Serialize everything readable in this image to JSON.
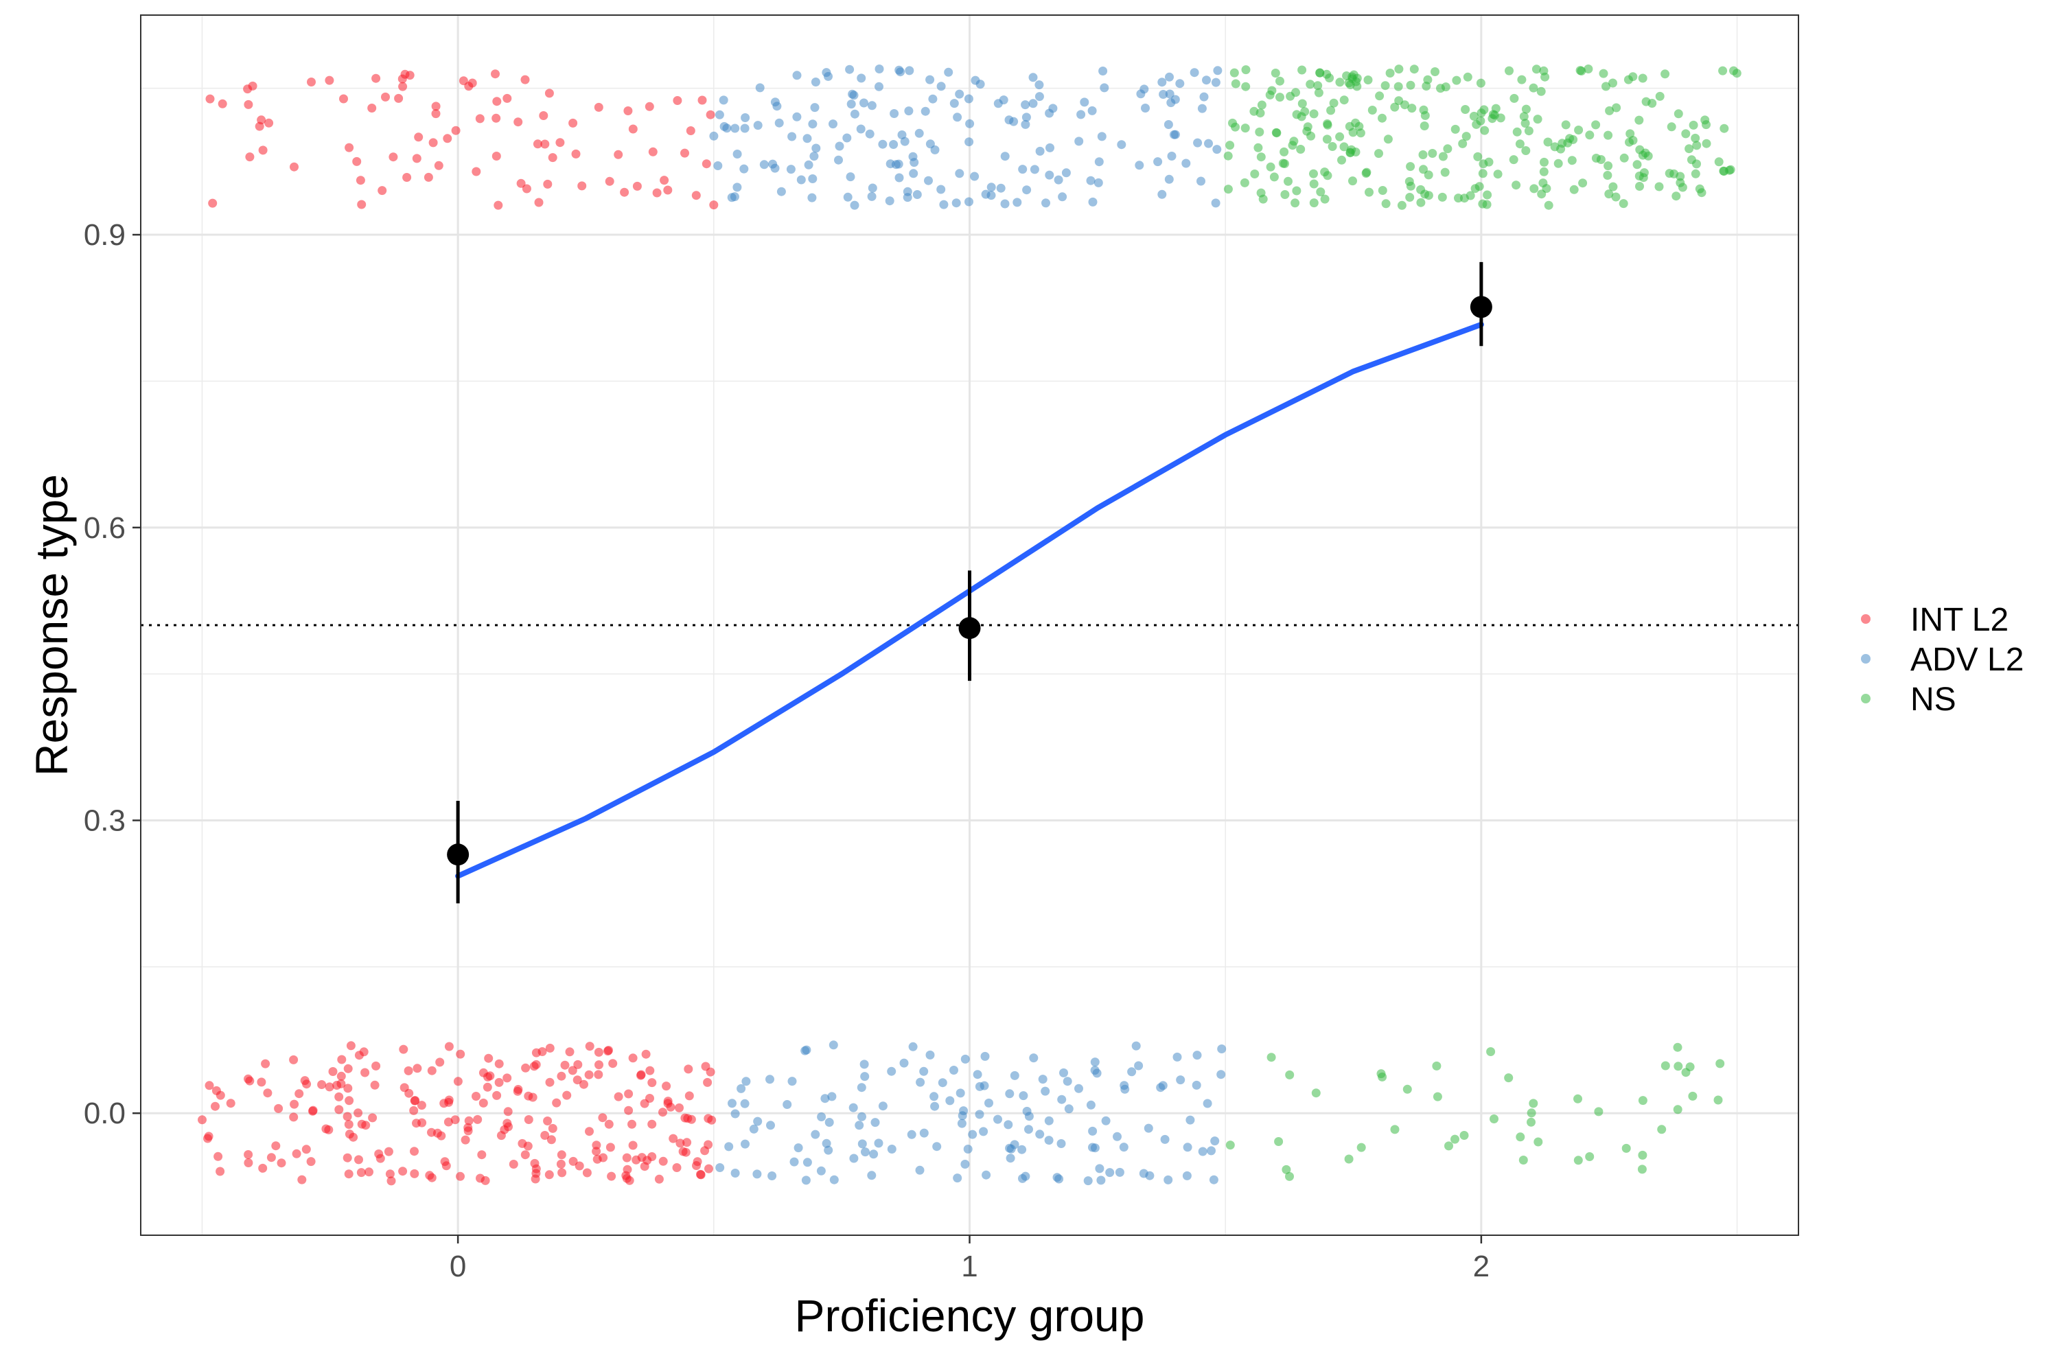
{
  "chart_data": {
    "type": "scatter",
    "xlabel": "Proficiency group",
    "ylabel": "Response type",
    "xlim": [
      -0.62,
      2.62
    ],
    "ylim": [
      -0.125,
      1.125
    ],
    "x_ticks": [
      0,
      1,
      2
    ],
    "x_tick_labels": [
      "0",
      "1",
      "2"
    ],
    "y_ticks": [
      0.0,
      0.3,
      0.6,
      0.9
    ],
    "y_tick_labels": [
      "0.0",
      "0.3",
      "0.6",
      "0.9"
    ],
    "grid": true,
    "legend_position": "right",
    "reference_line": {
      "y": 0.5,
      "style": "dotted"
    },
    "series": [
      {
        "name": "INT L2",
        "color": "#f8121f",
        "x_center": 0,
        "x_range": [
          -0.5,
          0.5
        ],
        "count_y1": 85,
        "count_y0": 240
      },
      {
        "name": "ADV L2",
        "color": "#3b84c4",
        "x_center": 1,
        "x_range": [
          -0.5,
          0.5
        ],
        "count_y1": 175,
        "count_y0": 150
      },
      {
        "name": "NS",
        "color": "#2eb63a",
        "x_center": 2,
        "x_range": [
          -0.5,
          0.5
        ],
        "count_y1": 280,
        "count_y0": 45
      }
    ],
    "jitter_y": 0.07,
    "point_alpha": 0.5,
    "means": [
      {
        "x": 0,
        "y": 0.265,
        "lower": 0.215,
        "upper": 0.32
      },
      {
        "x": 1,
        "y": 0.497,
        "lower": 0.443,
        "upper": 0.556
      },
      {
        "x": 2,
        "y": 0.826,
        "lower": 0.786,
        "upper": 0.872
      }
    ],
    "fit_curve": {
      "color": "#2962ff",
      "x": [
        0,
        0.25,
        0.5,
        0.75,
        1.0,
        1.25,
        1.5,
        1.75,
        2.0
      ],
      "y": [
        0.243,
        0.302,
        0.37,
        0.45,
        0.535,
        0.62,
        0.695,
        0.76,
        0.808
      ]
    }
  }
}
